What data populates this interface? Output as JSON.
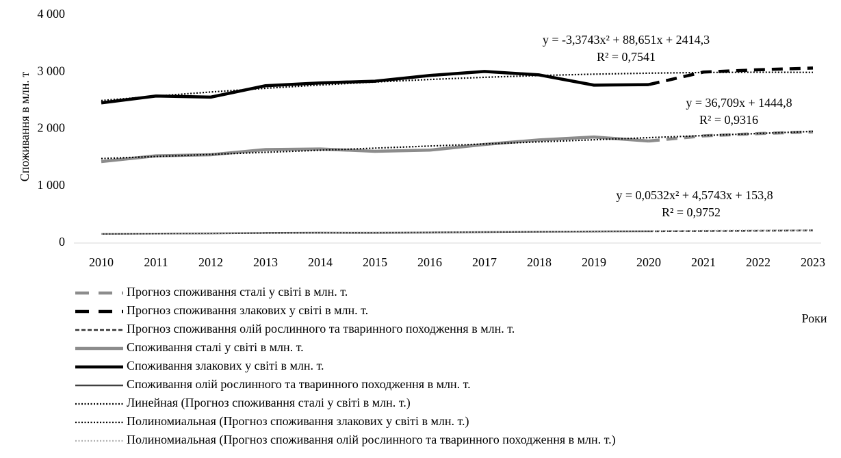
{
  "chart_data": {
    "type": "line",
    "y_label": "Споживання в млн. т",
    "x_label": "Роки",
    "categories": [
      "2010",
      "2011",
      "2012",
      "2013",
      "2014",
      "2015",
      "2016",
      "2017",
      "2018",
      "2019",
      "2020",
      "2021",
      "2022",
      "2023"
    ],
    "ylim": [
      0,
      4000
    ],
    "yticks": [
      0,
      {
        "value": 1000,
        "label": "1 000"
      },
      {
        "value": 2000,
        "label": "2 000"
      },
      {
        "value": 3000,
        "label": "3 000"
      },
      {
        "value": 4000,
        "label": "4 000"
      }
    ],
    "grid": false,
    "legend": "bottom",
    "series": [
      {
        "name": "Прогноз споживання сталі у світі в млн. т.",
        "color": "#8c8c8c",
        "style": "long-dash",
        "values": [
          null,
          null,
          null,
          null,
          null,
          null,
          null,
          null,
          null,
          null,
          1790,
          1880,
          1920,
          1950
        ]
      },
      {
        "name": "Прогноз споживання злакових у світі в млн. т.",
        "color": "#000000",
        "style": "long-dash",
        "values": [
          null,
          null,
          null,
          null,
          null,
          null,
          null,
          null,
          null,
          null,
          2780,
          3000,
          3040,
          3070
        ]
      },
      {
        "name": "Прогноз споживання олій рослинного та тваринного походження в млн. т.",
        "color": "#333333",
        "style": "dash",
        "values": [
          null,
          null,
          null,
          null,
          null,
          null,
          null,
          null,
          null,
          null,
          205,
          210,
          215,
          222
        ]
      },
      {
        "name": "Споживання сталі у світі в млн. т.",
        "color": "#8c8c8c",
        "style": "solid",
        "values": [
          1430,
          1530,
          1550,
          1640,
          1650,
          1610,
          1630,
          1730,
          1810,
          1860,
          1790,
          null,
          null,
          null
        ]
      },
      {
        "name": "Споживання злакових у світі в млн. т.",
        "color": "#000000",
        "style": "solid",
        "values": [
          2460,
          2580,
          2560,
          2760,
          2810,
          2840,
          2940,
          3010,
          2950,
          2770,
          2780,
          null,
          null,
          null
        ]
      },
      {
        "name": "Споживання олій рослинного та тваринного походження в млн. т.",
        "color": "#404040",
        "style": "solid",
        "values": [
          160,
          165,
          168,
          175,
          180,
          178,
          185,
          192,
          198,
          203,
          205,
          null,
          null,
          null
        ]
      },
      {
        "name": "Линейная (Прогноз споживання сталі у світі в млн. т.)",
        "color": "#000000",
        "style": "dotted",
        "values": [
          1482,
          1518,
          1555,
          1592,
          1628,
          1665,
          1702,
          1738,
          1775,
          1812,
          1849,
          1885,
          1922,
          1959
        ]
      },
      {
        "name": "Полиномиальная (Прогноз споживання злакових у світі в млн. т.)",
        "color": "#000000",
        "style": "dotted",
        "values": [
          2500,
          2578,
          2650,
          2715,
          2773,
          2825,
          2870,
          2908,
          2939,
          2963,
          2981,
          2992,
          2997,
          2994
        ]
      },
      {
        "name": "Полиномиальная (Прогноз споживання олій рослинного та тваринного походження в млн. т.)",
        "color": "#b0b0b0",
        "style": "dotted",
        "values": [
          158,
          163,
          168,
          173,
          178,
          183,
          188,
          194,
          199,
          205,
          211,
          216,
          222,
          228
        ]
      }
    ],
    "annotations": [
      "y = -3,3743x² + 88,651x + 2414,3",
      "R² = 0,7541",
      "y = 36,709x + 1444,8",
      "R² = 0,9316",
      "y = 0,0532x² + 4,5743x + 153,8",
      "R² = 0,9752"
    ]
  }
}
